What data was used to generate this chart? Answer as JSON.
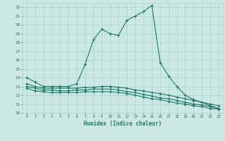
{
  "xlabel": "Humidex (Indice chaleur)",
  "bg_color": "#cce8e3",
  "line_color": "#1a7a6a",
  "grid_color": "#aad0ca",
  "xlim_min": -0.5,
  "xlim_max": 23.5,
  "ylim_min": 10,
  "ylim_max": 22.5,
  "xticks": [
    0,
    1,
    2,
    3,
    4,
    5,
    6,
    7,
    8,
    9,
    10,
    11,
    12,
    13,
    14,
    15,
    16,
    17,
    18,
    19,
    20,
    21,
    22,
    23
  ],
  "yticks": [
    10,
    11,
    12,
    13,
    14,
    15,
    16,
    17,
    18,
    19,
    20,
    21,
    22
  ],
  "line1_x": [
    0,
    1,
    2,
    3,
    4,
    5,
    6,
    7,
    8,
    9,
    10,
    11,
    12,
    13,
    14,
    15,
    16,
    17,
    18,
    19,
    20,
    21,
    22,
    23
  ],
  "line1_y": [
    14.0,
    13.5,
    13.0,
    13.0,
    13.0,
    13.0,
    13.3,
    15.5,
    18.3,
    19.5,
    19.0,
    18.8,
    20.5,
    21.0,
    21.5,
    22.2,
    15.7,
    14.2,
    13.0,
    12.0,
    11.5,
    11.2,
    10.8,
    10.5
  ],
  "line2_x": [
    0,
    1,
    2,
    3,
    4,
    5,
    6,
    7,
    8,
    9,
    10,
    11,
    12,
    13,
    14,
    15,
    16,
    17,
    18,
    19,
    20,
    21,
    22,
    23
  ],
  "line2_y": [
    13.3,
    13.0,
    12.8,
    12.8,
    12.8,
    12.8,
    12.8,
    12.9,
    12.9,
    13.0,
    13.0,
    12.9,
    12.8,
    12.6,
    12.5,
    12.3,
    12.2,
    12.0,
    11.8,
    11.6,
    11.4,
    11.2,
    11.0,
    10.8
  ],
  "line3_x": [
    0,
    1,
    2,
    3,
    4,
    5,
    6,
    7,
    8,
    9,
    10,
    11,
    12,
    13,
    14,
    15,
    16,
    17,
    18,
    19,
    20,
    21,
    22,
    23
  ],
  "line3_y": [
    13.0,
    12.8,
    12.6,
    12.6,
    12.5,
    12.5,
    12.6,
    12.6,
    12.7,
    12.7,
    12.7,
    12.6,
    12.4,
    12.3,
    12.1,
    11.9,
    11.7,
    11.6,
    11.4,
    11.2,
    11.0,
    10.9,
    10.7,
    10.5
  ],
  "line4_x": [
    0,
    1,
    2,
    3,
    4,
    5,
    6,
    7,
    8,
    9,
    10,
    11,
    12,
    13,
    14,
    15,
    16,
    17,
    18,
    19,
    20,
    21,
    22,
    23
  ],
  "line4_y": [
    12.8,
    12.5,
    12.4,
    12.3,
    12.3,
    12.3,
    12.3,
    12.4,
    12.4,
    12.4,
    12.4,
    12.3,
    12.2,
    12.0,
    11.8,
    11.6,
    11.5,
    11.3,
    11.1,
    11.0,
    10.8,
    10.7,
    10.5,
    10.4
  ]
}
